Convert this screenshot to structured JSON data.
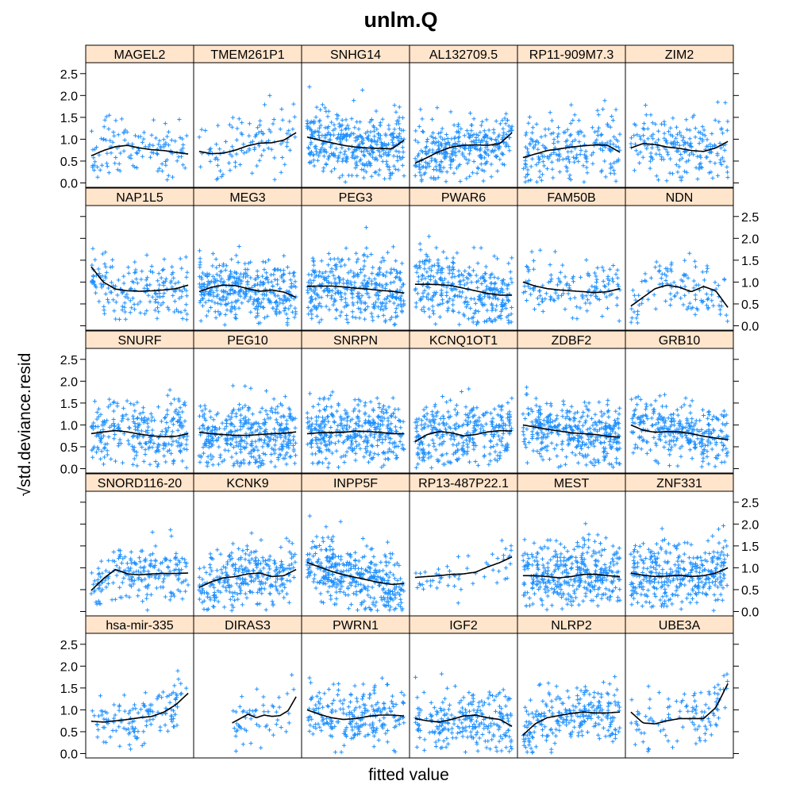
{
  "chart_data": {
    "type": "scatter",
    "title": "unlm.Q",
    "xlabel": "fitted value",
    "ylabel": "√std.deviance.resid",
    "ylim": [
      -0.1,
      2.75
    ],
    "yticks": [
      "0.0",
      "0.5",
      "1.0",
      "1.5",
      "2.0",
      "2.5"
    ],
    "grid": false,
    "layout": {
      "columns": 6,
      "rows": 5,
      "order": "bottom-to-top"
    },
    "colors": {
      "points": "#1E90FF",
      "smooth": "#000000",
      "strip": "#FFE5CC",
      "frame": "#000000"
    },
    "panels": [
      {
        "name": "MAGEL2",
        "n": 130,
        "ymean": 0.82,
        "spread": 0.33,
        "smooth": [
          0.62,
          0.74,
          0.83,
          0.86,
          0.8,
          0.76,
          0.74,
          0.7,
          0.66
        ]
      },
      {
        "name": "TMEM261P1",
        "n": 110,
        "ymean": 0.85,
        "spread": 0.33,
        "smooth": [
          0.72,
          0.67,
          0.68,
          0.75,
          0.85,
          0.91,
          0.92,
          0.98,
          1.15
        ]
      },
      {
        "name": "SNHG14",
        "n": 380,
        "ymean": 0.82,
        "spread": 0.38,
        "smooth": [
          1.05,
          0.98,
          0.92,
          0.86,
          0.82,
          0.8,
          0.79,
          0.78,
          0.98
        ]
      },
      {
        "name": "AL132709.5",
        "n": 330,
        "ymean": 0.86,
        "spread": 0.35,
        "smooth": [
          0.45,
          0.58,
          0.72,
          0.82,
          0.86,
          0.87,
          0.86,
          0.9,
          1.15
        ]
      },
      {
        "name": "RP11-909M7.3",
        "n": 220,
        "ymean": 0.82,
        "spread": 0.35,
        "smooth": [
          0.58,
          0.66,
          0.74,
          0.78,
          0.82,
          0.85,
          0.87,
          0.86,
          0.7
        ]
      },
      {
        "name": "ZIM2",
        "n": 200,
        "ymean": 0.82,
        "spread": 0.35,
        "smooth": [
          0.8,
          0.9,
          0.88,
          0.82,
          0.79,
          0.74,
          0.72,
          0.8,
          0.95
        ]
      },
      {
        "name": "NAP1L5",
        "n": 190,
        "ymean": 0.8,
        "spread": 0.35,
        "smooth": [
          1.35,
          1.0,
          0.84,
          0.8,
          0.79,
          0.8,
          0.82,
          0.85,
          0.93
        ]
      },
      {
        "name": "MEG3",
        "n": 380,
        "ymean": 0.84,
        "spread": 0.36,
        "smooth": [
          0.78,
          0.88,
          0.93,
          0.92,
          0.85,
          0.79,
          0.82,
          0.77,
          0.65
        ]
      },
      {
        "name": "PEG3",
        "n": 360,
        "ymean": 0.85,
        "spread": 0.38,
        "smooth": [
          0.9,
          0.91,
          0.91,
          0.89,
          0.86,
          0.84,
          0.81,
          0.79,
          0.75
        ]
      },
      {
        "name": "PWAR6",
        "n": 330,
        "ymean": 0.82,
        "spread": 0.38,
        "smooth": [
          0.95,
          0.95,
          0.94,
          0.92,
          0.86,
          0.8,
          0.74,
          0.7,
          0.7
        ]
      },
      {
        "name": "FAM50B",
        "n": 140,
        "ymean": 0.85,
        "spread": 0.33,
        "smooth": [
          1.0,
          0.91,
          0.85,
          0.82,
          0.8,
          0.78,
          0.76,
          0.78,
          0.85
        ]
      },
      {
        "name": "NDN",
        "n": 120,
        "ymean": 0.82,
        "spread": 0.33,
        "smooth": [
          0.45,
          0.65,
          0.85,
          0.93,
          0.88,
          0.78,
          0.9,
          0.8,
          0.42
        ]
      },
      {
        "name": "SNURF",
        "n": 280,
        "ymean": 0.78,
        "spread": 0.36,
        "smooth": [
          0.8,
          0.84,
          0.87,
          0.84,
          0.79,
          0.75,
          0.73,
          0.74,
          0.8
        ]
      },
      {
        "name": "PEG10",
        "n": 380,
        "ymean": 0.8,
        "spread": 0.38,
        "smooth": [
          0.83,
          0.8,
          0.78,
          0.76,
          0.76,
          0.78,
          0.8,
          0.81,
          0.84
        ]
      },
      {
        "name": "SNRPN",
        "n": 380,
        "ymean": 0.84,
        "spread": 0.36,
        "smooth": [
          0.8,
          0.82,
          0.83,
          0.83,
          0.86,
          0.85,
          0.83,
          0.8,
          0.8
        ]
      },
      {
        "name": "KCNQ1OT1",
        "n": 330,
        "ymean": 0.84,
        "spread": 0.36,
        "smooth": [
          0.62,
          0.78,
          0.85,
          0.82,
          0.75,
          0.78,
          0.84,
          0.87,
          0.86
        ]
      },
      {
        "name": "ZDBF2",
        "n": 370,
        "ymean": 0.84,
        "spread": 0.36,
        "smooth": [
          1.0,
          0.95,
          0.9,
          0.86,
          0.82,
          0.8,
          0.78,
          0.74,
          0.72
        ]
      },
      {
        "name": "GRB10",
        "n": 300,
        "ymean": 0.82,
        "spread": 0.36,
        "smooth": [
          1.0,
          0.88,
          0.83,
          0.85,
          0.84,
          0.8,
          0.74,
          0.7,
          0.66
        ]
      },
      {
        "name": "SNORD116-20",
        "n": 210,
        "ymean": 0.82,
        "spread": 0.33,
        "smooth": [
          0.48,
          0.75,
          0.96,
          0.86,
          0.84,
          0.86,
          0.87,
          0.87,
          0.88
        ]
      },
      {
        "name": "KCNK9",
        "n": 300,
        "ymean": 0.82,
        "spread": 0.35,
        "smooth": [
          0.55,
          0.68,
          0.77,
          0.8,
          0.86,
          0.88,
          0.8,
          0.82,
          0.96
        ]
      },
      {
        "name": "INPP5F",
        "n": 380,
        "ymean": 0.75,
        "spread": 0.38,
        "smooth": [
          1.12,
          1.02,
          0.92,
          0.84,
          0.78,
          0.72,
          0.66,
          0.62,
          0.64
        ]
      },
      {
        "name": "RP13-487P22.1",
        "n": 55,
        "ymean": 0.88,
        "spread": 0.25,
        "smooth": [
          0.78,
          0.8,
          0.82,
          0.85,
          0.86,
          0.9,
          1.02,
          1.12,
          1.25
        ]
      },
      {
        "name": "MEST",
        "n": 380,
        "ymean": 0.8,
        "spread": 0.38,
        "smooth": [
          0.82,
          0.82,
          0.8,
          0.77,
          0.8,
          0.85,
          0.85,
          0.82,
          0.8
        ]
      },
      {
        "name": "ZNF331",
        "n": 370,
        "ymean": 0.82,
        "spread": 0.36,
        "smooth": [
          0.88,
          0.83,
          0.8,
          0.81,
          0.83,
          0.8,
          0.82,
          0.88,
          1.0
        ]
      },
      {
        "name": "hsa-mir-335",
        "n": 140,
        "ymean": 0.82,
        "spread": 0.33,
        "smooth": [
          0.74,
          0.72,
          0.75,
          0.78,
          0.82,
          0.85,
          0.95,
          1.12,
          1.38
        ]
      },
      {
        "name": "DIRAS3",
        "n": 55,
        "ymean": 0.88,
        "spread": 0.28,
        "x0": 0.35,
        "smooth": [
          0.7,
          0.8,
          0.9,
          0.82,
          0.88,
          0.85,
          0.87,
          0.98,
          1.3
        ]
      },
      {
        "name": "PWRN1",
        "n": 230,
        "ymean": 0.82,
        "spread": 0.33,
        "smooth": [
          1.0,
          0.9,
          0.82,
          0.78,
          0.8,
          0.85,
          0.88,
          0.88,
          0.86
        ]
      },
      {
        "name": "IGF2",
        "n": 250,
        "ymean": 0.82,
        "spread": 0.35,
        "smooth": [
          0.8,
          0.75,
          0.72,
          0.78,
          0.86,
          0.88,
          0.82,
          0.78,
          0.62
        ]
      },
      {
        "name": "NLRP2",
        "n": 250,
        "ymean": 0.84,
        "spread": 0.35,
        "smooth": [
          0.42,
          0.68,
          0.82,
          0.87,
          0.92,
          0.95,
          0.93,
          0.93,
          0.95
        ]
      },
      {
        "name": "UBE3A",
        "n": 110,
        "ymean": 0.8,
        "spread": 0.33,
        "smooth": [
          0.95,
          0.7,
          0.68,
          0.75,
          0.8,
          0.8,
          0.8,
          1.05,
          1.6
        ]
      }
    ]
  }
}
